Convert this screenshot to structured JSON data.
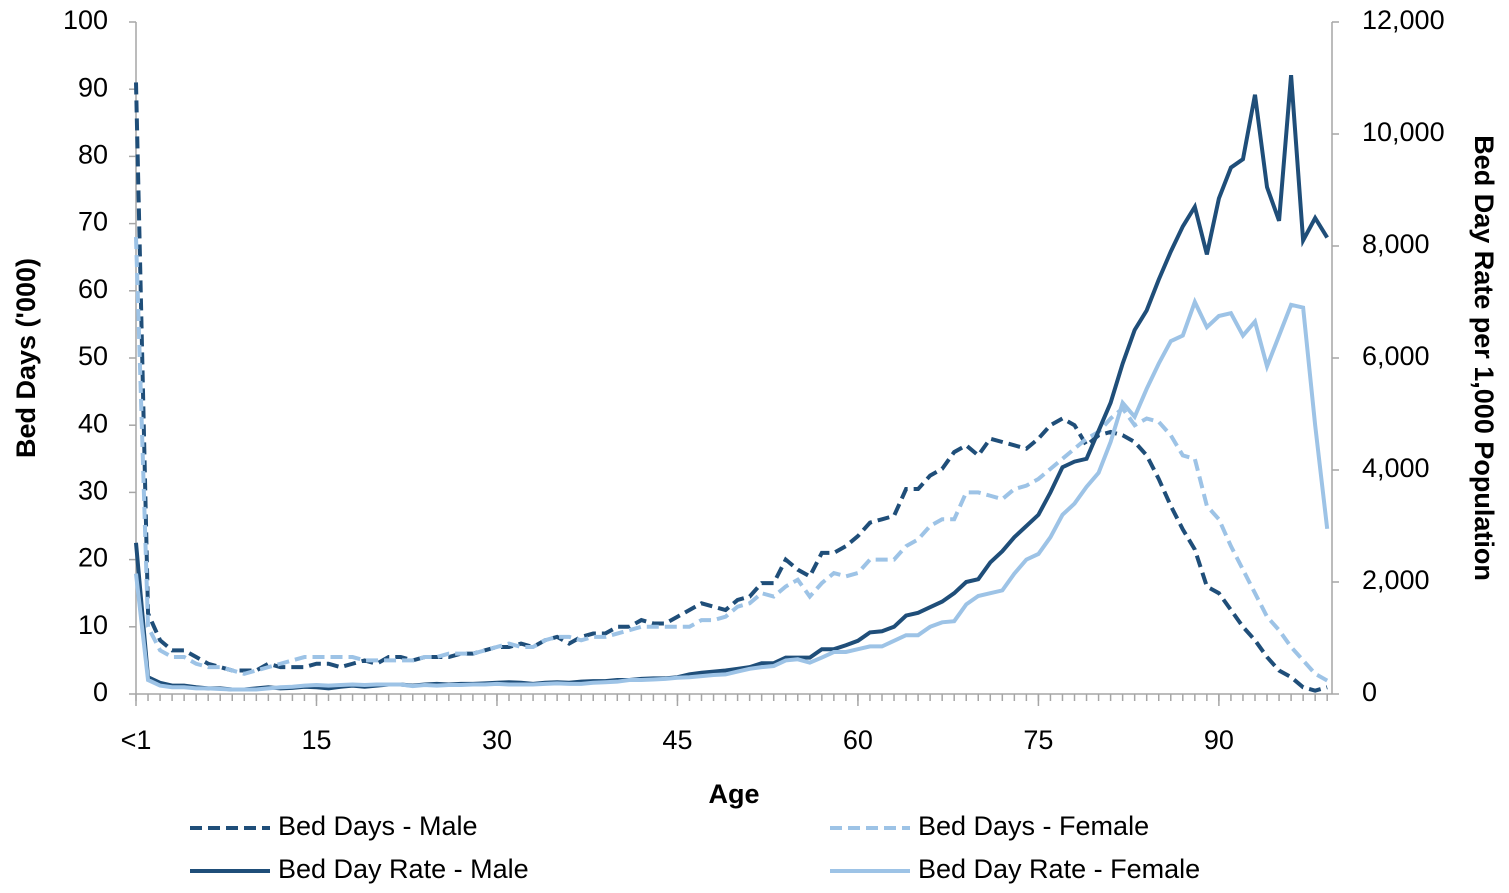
{
  "chart_data": {
    "type": "line",
    "xlabel": "Age",
    "ylabel": "Bed Days ('000)",
    "y2label": "Bed Day Rate per 1,000 Population",
    "x": [
      0,
      1,
      2,
      3,
      4,
      5,
      6,
      7,
      8,
      9,
      10,
      11,
      12,
      13,
      14,
      15,
      16,
      17,
      18,
      19,
      20,
      21,
      22,
      23,
      24,
      25,
      26,
      27,
      28,
      29,
      30,
      31,
      32,
      33,
      34,
      35,
      36,
      37,
      38,
      39,
      40,
      41,
      42,
      43,
      44,
      45,
      46,
      47,
      48,
      49,
      50,
      51,
      52,
      53,
      54,
      55,
      56,
      57,
      58,
      59,
      60,
      61,
      62,
      63,
      64,
      65,
      66,
      67,
      68,
      69,
      70,
      71,
      72,
      73,
      74,
      75,
      76,
      77,
      78,
      79,
      80,
      81,
      82,
      83,
      84,
      85,
      86,
      87,
      88,
      89,
      90,
      91,
      92,
      93,
      94,
      95,
      96,
      97,
      98,
      99
    ],
    "xlim": [
      0,
      99.4
    ],
    "xticks": [
      {
        "value": 0,
        "label": "<1"
      },
      15,
      30,
      45,
      60,
      75,
      90
    ],
    "ylim": [
      0,
      100
    ],
    "yticks": [
      0,
      10,
      20,
      30,
      40,
      50,
      60,
      70,
      80,
      90,
      100
    ],
    "y2lim": [
      0,
      12000
    ],
    "y2ticks": [
      0,
      {
        "value": 2000,
        "label": "2,000"
      },
      {
        "value": 4000,
        "label": "4,000"
      },
      {
        "value": 6000,
        "label": "6,000"
      },
      {
        "value": 8000,
        "label": "8,000"
      },
      {
        "value": 10000,
        "label": "10,000"
      },
      {
        "value": 12000,
        "label": "12,000"
      }
    ],
    "grid": false,
    "legend": "bottom",
    "series": [
      {
        "name": "Bed Days - Male",
        "color": "#1f4e79",
        "line_style": "dashed",
        "values": [
          91,
          12,
          8,
          6.5,
          6.5,
          5.5,
          4.5,
          4,
          3.5,
          3.5,
          3.5,
          4.5,
          4,
          4,
          4,
          4.5,
          4.5,
          4,
          4.5,
          5,
          4.5,
          5.5,
          5.5,
          5,
          5.5,
          5.5,
          5.5,
          6,
          6,
          6.5,
          7,
          7,
          7.5,
          7,
          8,
          8.5,
          7.5,
          8.5,
          9,
          9,
          10,
          10,
          11,
          10.5,
          10.5,
          11.5,
          12.5,
          13.5,
          13,
          12.5,
          14,
          14.5,
          16.5,
          16.5,
          20,
          18.5,
          17.5,
          21,
          21,
          22,
          23.5,
          25.5,
          26,
          26.5,
          30.5,
          30.5,
          32.5,
          33.5,
          36,
          37,
          35.5,
          38,
          37.5,
          37,
          36.5,
          38,
          40,
          41,
          40,
          37,
          38.5,
          39,
          38.5,
          37.5,
          35.5,
          32,
          28,
          24.5,
          21.5,
          16,
          15,
          12.5,
          10,
          8,
          5.5,
          3.5,
          2.5,
          1,
          0.5,
          1
        ]
      },
      {
        "name": "Bed Days - Female",
        "color": "#9dc3e6",
        "line_style": "dashed",
        "values": [
          68,
          10,
          6.5,
          5.5,
          5.5,
          4.5,
          4,
          4,
          3.5,
          3,
          3.5,
          4,
          4.5,
          5,
          5.5,
          5.5,
          5.5,
          5.5,
          5.5,
          5,
          5,
          5,
          5,
          5,
          5.5,
          5.5,
          6,
          6,
          6,
          6.5,
          7,
          7.5,
          7,
          7,
          8,
          8.5,
          8.5,
          8,
          8.5,
          8.5,
          9,
          9.5,
          10,
          10,
          10,
          10,
          10,
          11,
          11,
          11.5,
          13,
          13.5,
          15,
          14.5,
          16,
          17,
          14.5,
          16.5,
          18,
          17.5,
          18,
          20,
          20,
          20,
          22,
          23,
          25,
          26,
          26,
          30,
          30,
          29.5,
          29,
          30.5,
          31,
          32,
          33.5,
          35,
          36.5,
          38,
          39,
          41,
          42.5,
          40,
          41,
          40.5,
          38.5,
          35.5,
          35,
          28,
          26,
          22,
          18.5,
          15,
          11.5,
          9.5,
          7,
          5,
          3,
          2
        ]
      },
      {
        "name": "Bed Day Rate - Male",
        "color": "#1f4e79",
        "line_style": "solid",
        "axis": "y2",
        "values": [
          2700,
          300,
          200,
          150,
          150,
          120,
          100,
          100,
          80,
          80,
          100,
          120,
          100,
          110,
          130,
          120,
          100,
          130,
          150,
          130,
          150,
          170,
          170,
          150,
          170,
          180,
          170,
          180,
          180,
          190,
          200,
          210,
          200,
          180,
          200,
          210,
          200,
          220,
          230,
          230,
          250,
          250,
          270,
          280,
          280,
          300,
          350,
          380,
          400,
          420,
          450,
          480,
          550,
          550,
          650,
          650,
          650,
          800,
          800,
          870,
          950,
          1100,
          1120,
          1200,
          1400,
          1450,
          1550,
          1650,
          1800,
          2000,
          2050,
          2350,
          2550,
          2800,
          3000,
          3200,
          3600,
          4050,
          4150,
          4200,
          4700,
          5200,
          5900,
          6500,
          6850,
          7400,
          7900,
          8350,
          8700,
          7850,
          8850,
          9400,
          9550,
          10700,
          9050,
          8450,
          11050,
          8100,
          8500,
          8150
        ]
      },
      {
        "name": "Bed Day Rate - Female",
        "color": "#9dc3e6",
        "line_style": "solid",
        "axis": "y2",
        "values": [
          2150,
          250,
          150,
          120,
          120,
          100,
          100,
          90,
          80,
          80,
          80,
          100,
          120,
          130,
          150,
          160,
          150,
          160,
          170,
          160,
          170,
          170,
          170,
          140,
          160,
          150,
          160,
          160,
          170,
          170,
          180,
          170,
          170,
          170,
          180,
          190,
          180,
          180,
          200,
          210,
          220,
          250,
          250,
          260,
          270,
          290,
          300,
          320,
          340,
          350,
          400,
          450,
          480,
          500,
          600,
          620,
          560,
          650,
          750,
          750,
          800,
          850,
          850,
          950,
          1050,
          1050,
          1200,
          1280,
          1300,
          1600,
          1750,
          1800,
          1850,
          2150,
          2400,
          2500,
          2800,
          3200,
          3400,
          3700,
          3950,
          4500,
          5200,
          4950,
          5450,
          5900,
          6300,
          6400,
          7000,
          6550,
          6750,
          6800,
          6400,
          6650,
          5850,
          6400,
          6950,
          6900,
          4800,
          2950
        ]
      }
    ]
  }
}
